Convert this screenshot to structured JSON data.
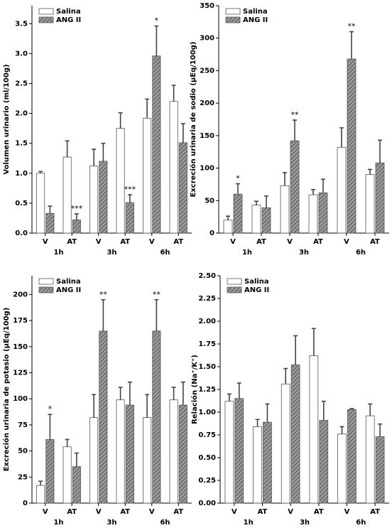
{
  "chart_data": [
    {
      "type": "bar",
      "ylabel": "Volumen urinario (ml/100g)",
      "categories": [
        "V",
        "AT",
        "V",
        "AT",
        "V",
        "AT"
      ],
      "groups": [
        "1h",
        "3h",
        "6h"
      ],
      "series": [
        {
          "name": "Salina",
          "color": "#ffffff",
          "values": [
            1.0,
            1.27,
            1.12,
            1.75,
            1.92,
            2.2
          ],
          "errors": [
            0.03,
            0.27,
            0.28,
            0.26,
            0.32,
            0.27
          ]
        },
        {
          "name": "ANG II",
          "color": "#8a8a8a",
          "pattern": "hatch",
          "values": [
            0.33,
            0.22,
            1.2,
            0.51,
            2.96,
            1.51
          ],
          "errors": [
            0.12,
            0.1,
            0.3,
            0.13,
            0.5,
            0.32
          ],
          "annotations": [
            null,
            "***",
            null,
            "***",
            "*",
            null
          ]
        }
      ],
      "ylim": [
        0,
        3.8
      ],
      "yticks": [
        {
          "value": 0,
          "label": "0.0"
        },
        0.5,
        {
          "value": 1,
          "label": "1.0"
        },
        1.5,
        {
          "value": 2,
          "label": "2.0"
        },
        2.5,
        {
          "value": 3,
          "label": "3.0"
        },
        3.5
      ],
      "legend": "top-left"
    },
    {
      "type": "bar",
      "ylabel": "Excreción urinaria de sodio (µEq/100g)",
      "categories": [
        "V",
        "AT",
        "V",
        "AT",
        "V",
        "AT"
      ],
      "groups": [
        "1h",
        "3h",
        "6h"
      ],
      "series": [
        {
          "name": "Salina",
          "color": "#ffffff",
          "values": [
            20,
            43,
            73,
            59,
            132,
            90
          ],
          "errors": [
            6,
            6,
            20,
            8,
            30,
            8
          ]
        },
        {
          "name": "ANG II",
          "color": "#8a8a8a",
          "pattern": "hatch",
          "values": [
            60,
            39,
            142,
            62,
            268,
            108
          ],
          "errors": [
            16,
            18,
            32,
            21,
            42,
            35
          ],
          "annotations": [
            "*",
            null,
            "**",
            null,
            "**",
            null
          ]
        }
      ],
      "ylim": [
        0,
        350
      ],
      "yticks": [
        0,
        50,
        100,
        150,
        200,
        250,
        300,
        350
      ],
      "legend": "top-left"
    },
    {
      "type": "bar",
      "ylabel": "Excreción urinaria de potasio (µEq/100g)",
      "categories": [
        "V",
        "AT",
        "V",
        "AT",
        "V",
        "AT"
      ],
      "groups": [
        "1h",
        "3h",
        "6h"
      ],
      "series": [
        {
          "name": "Salina",
          "color": "#ffffff",
          "values": [
            17,
            54,
            82,
            99,
            82,
            99
          ],
          "errors": [
            4,
            7,
            22,
            12,
            22,
            12
          ]
        },
        {
          "name": "ANG II",
          "color": "#8a8a8a",
          "pattern": "hatch",
          "values": [
            61,
            35,
            165,
            94,
            165,
            94
          ],
          "errors": [
            24,
            13,
            30,
            22,
            30,
            22
          ],
          "annotations": [
            "*",
            null,
            "**",
            null,
            "**",
            null
          ]
        }
      ],
      "ylim": [
        0,
        218
      ],
      "yticks": [
        0,
        25,
        50,
        75,
        100,
        125,
        150,
        175,
        200
      ],
      "legend": "top-left"
    },
    {
      "type": "bar",
      "ylabel": "Relación (Na⁺/K⁺)",
      "categories": [
        "V",
        "AT",
        "V",
        "AT",
        "V",
        "AT"
      ],
      "groups": [
        "1h",
        "3h",
        "6h"
      ],
      "series": [
        {
          "name": "Salina",
          "color": "#ffffff",
          "values": [
            1.12,
            0.84,
            1.31,
            1.62,
            0.76,
            0.96
          ],
          "errors": [
            0.08,
            0.08,
            0.17,
            0.3,
            0.08,
            0.13
          ]
        },
        {
          "name": "ANG II",
          "color": "#8a8a8a",
          "pattern": "hatch",
          "values": [
            1.15,
            0.89,
            1.52,
            0.91,
            1.03,
            0.73
          ],
          "errors": [
            0.17,
            0.2,
            0.32,
            0.21,
            0.01,
            0.14
          ]
        }
      ],
      "ylim": [
        0,
        2.5
      ],
      "yticks": [
        {
          "value": 0,
          "label": "0.00"
        },
        {
          "value": 0.25,
          "label": "0.25"
        },
        {
          "value": 0.5,
          "label": "0.50"
        },
        {
          "value": 0.75,
          "label": "0.75"
        },
        {
          "value": 1,
          "label": "1.00"
        },
        {
          "value": 1.25,
          "label": "1.25"
        },
        {
          "value": 1.5,
          "label": "1.50"
        },
        {
          "value": 1.75,
          "label": "1.75"
        },
        {
          "value": 2,
          "label": "2.00"
        },
        {
          "value": 2.25,
          "label": "2.25"
        },
        {
          "value": 2.5,
          "label": "2.50"
        }
      ],
      "legend": "top-left"
    }
  ]
}
